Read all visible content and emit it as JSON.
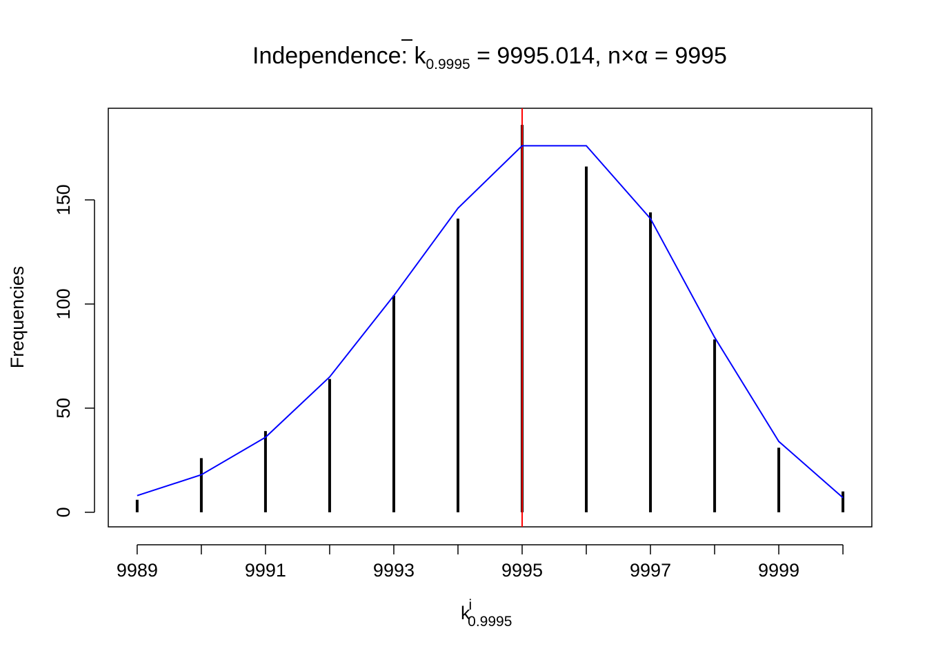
{
  "chart_data": {
    "type": "bar",
    "title": {
      "prefix": "Independence: ",
      "kbar": "k",
      "kbar_sub": "0.9995",
      "middle": " = 9995.014, n",
      "times": "×",
      "alpha": "α",
      "suffix": " = 9995"
    },
    "xlabel": {
      "base": "k",
      "sup": "i",
      "sub": "0.9995"
    },
    "ylabel": "Frequencies",
    "x": [
      9989,
      9990,
      9991,
      9992,
      9993,
      9994,
      9995,
      9996,
      9997,
      9998,
      9999,
      10000
    ],
    "series": [
      {
        "type": "bar",
        "color": "#000000",
        "values": [
          6,
          26,
          39,
          64,
          104,
          141,
          186,
          166,
          144,
          83,
          31,
          10
        ]
      },
      {
        "type": "line",
        "color": "#0000ff",
        "values": [
          8,
          18,
          36,
          65,
          104,
          146,
          176,
          176,
          141,
          84,
          34,
          7
        ]
      }
    ],
    "vline": {
      "x": 9995,
      "color": "#ff0000"
    },
    "xticks": [
      9989,
      9991,
      9993,
      9995,
      9997,
      9999
    ],
    "xtick_marks": [
      9989,
      9990,
      9991,
      9992,
      9993,
      9994,
      9995,
      9996,
      9997,
      9998,
      9999,
      10000
    ],
    "yticks": [
      0,
      50,
      100,
      150
    ],
    "xlim": [
      9988.55,
      10000.45
    ],
    "ylim": [
      -7,
      194
    ],
    "grid": false,
    "legend": "none"
  }
}
